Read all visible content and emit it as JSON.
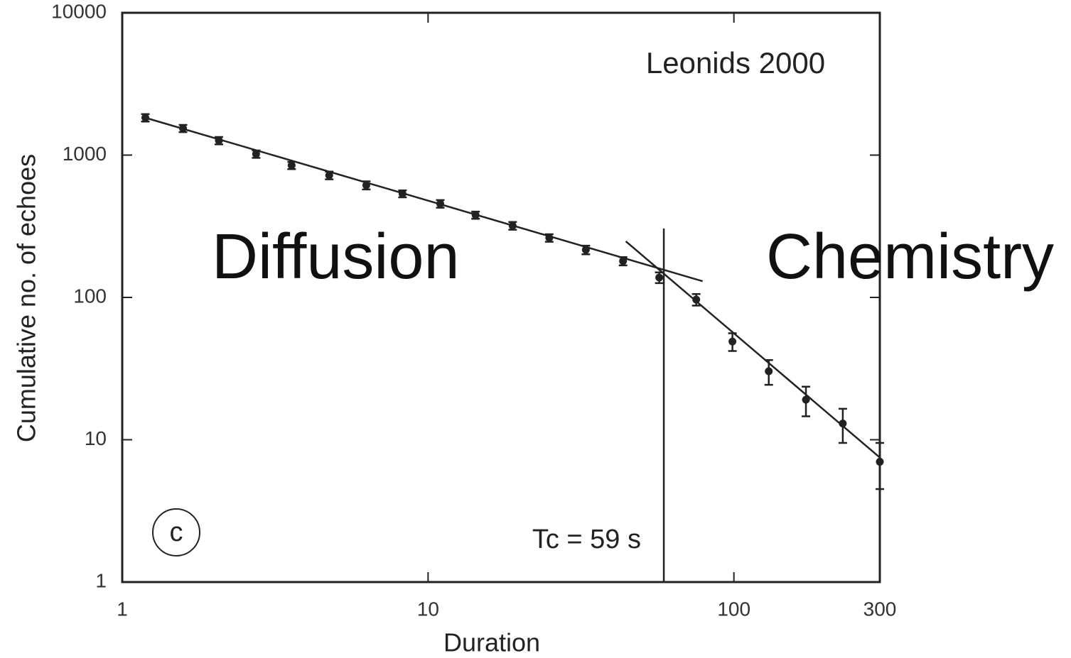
{
  "chart_data": {
    "type": "scatter",
    "x_label": "Duration",
    "y_label": "Cumulative no. of echoes",
    "log_x": true,
    "log_y": true,
    "xlim": [
      1,
      300
    ],
    "ylim": [
      1,
      10000
    ],
    "xticks": [
      1,
      10,
      100,
      300
    ],
    "yticks": [
      1,
      10,
      100,
      1000,
      10000
    ],
    "color": "#222222",
    "points": {
      "x": [
        1.19,
        1.58,
        2.07,
        2.74,
        3.58,
        4.75,
        6.28,
        8.25,
        10.96,
        14.3,
        18.9,
        24.9,
        32.8,
        43.4,
        57,
        75.3,
        98.9,
        130,
        172,
        227,
        300
      ],
      "y": [
        1830,
        1540,
        1265,
        1017,
        847,
        721,
        614,
        535,
        455,
        379,
        319,
        262,
        216,
        180,
        138,
        96.6,
        49,
        30.3,
        19.1,
        13,
        7
      ],
      "errors": [
        110,
        90,
        75,
        60,
        50,
        45,
        40,
        30,
        28,
        22,
        20,
        16,
        15,
        12,
        12,
        9,
        7,
        6,
        4.5,
        3.5,
        2.5
      ]
    },
    "lines": [
      {
        "x": [
          1.19,
          79
        ],
        "y": [
          1830,
          130
        ]
      },
      {
        "x": [
          44.3,
          300
        ],
        "y": [
          248,
          7.5
        ]
      },
      {
        "x": [
          59,
          59
        ],
        "y": [
          1,
          305
        ]
      }
    ],
    "annotations": [
      "Leonids 2000",
      "Diffusion",
      "Chemistry",
      "Tc = 59 s",
      "c"
    ]
  }
}
